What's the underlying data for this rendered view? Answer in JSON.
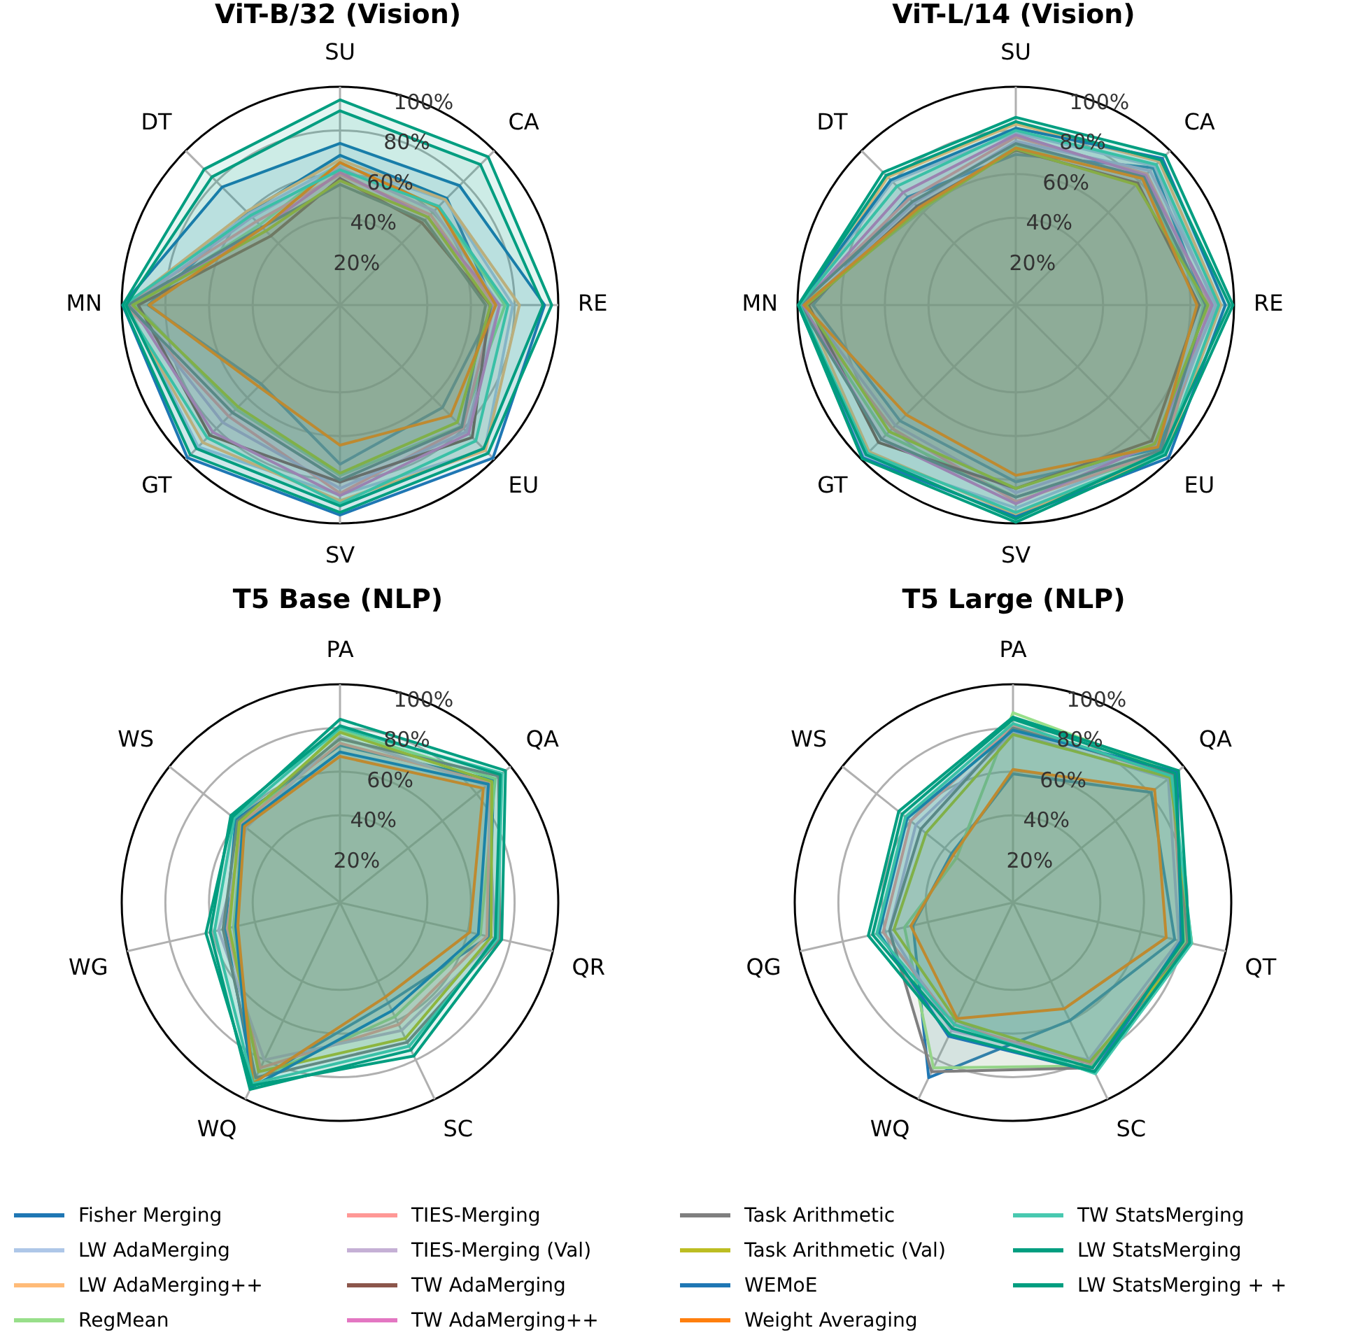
{
  "chart_data": [
    {
      "type": "radar",
      "title": "ViT-B/32 (Vision)",
      "categories": [
        "SU",
        "CA",
        "RE",
        "EU",
        "SV",
        "GT",
        "MN",
        "DT"
      ],
      "ylim": [
        0,
        100
      ],
      "yticks": [
        {
          "value": 20,
          "label": "20%"
        },
        {
          "value": 40,
          "label": "40%"
        },
        {
          "value": 60,
          "label": "60%"
        },
        {
          "value": 80,
          "label": "80%"
        },
        {
          "value": 100,
          "label": "100%"
        }
      ],
      "grid": true,
      "legend": "bottom",
      "series": [
        {
          "name": "Fisher Merging",
          "color": "#1f77b4",
          "values": [
            68.6,
            69.2,
            70.7,
            66.4,
            72.9,
            51.1,
            87.9,
            59.9
          ]
        },
        {
          "name": "LW AdaMerging",
          "color": "#aec7e8",
          "values": [
            64.5,
            68.1,
            79.2,
            93.8,
            87.0,
            91.9,
            97.5,
            59.1
          ]
        },
        {
          "name": "LW AdaMerging++",
          "color": "#ffbb78",
          "values": [
            66.6,
            68.3,
            82.2,
            94.2,
            89.6,
            89.0,
            98.3,
            60.6
          ]
        },
        {
          "name": "RegMean",
          "color": "#98df8a",
          "values": [
            65.3,
            63.5,
            75.6,
            78.6,
            78.1,
            67.4,
            93.7,
            52.0
          ]
        },
        {
          "name": "TIES-Merging",
          "color": "#ff9896",
          "values": [
            59.8,
            58.6,
            70.7,
            79.7,
            86.2,
            72.1,
            98.3,
            54.2
          ]
        },
        {
          "name": "TIES-Merging (Val)",
          "color": "#c5b0d5",
          "values": [
            63,
            61,
            73,
            82,
            84,
            76,
            96,
            57
          ]
        },
        {
          "name": "TW AdaMerging",
          "color": "#8c564b",
          "values": [
            58.0,
            53.2,
            68.8,
            85.7,
            81.1,
            84.4,
            92.4,
            44.8
          ]
        },
        {
          "name": "TW AdaMerging++",
          "color": "#e377c2",
          "values": [
            60.8,
            56.9,
            73.1,
            83.4,
            87.3,
            82.4,
            95.7,
            50.1
          ]
        },
        {
          "name": "Task Arithmetic",
          "color": "#7f7f7f",
          "values": [
            55.2,
            54.9,
            66.7,
            78.9,
            80.2,
            69.7,
            97.3,
            50.4
          ]
        },
        {
          "name": "Task Arithmetic (Val)",
          "color": "#bcbd22",
          "values": [
            57,
            57,
            69,
            76,
            77,
            66,
            95,
            48
          ]
        },
        {
          "name": "WEMoE",
          "color": "#1f77b4",
          "values": [
            74.1,
            77.4,
            93.7,
            99.1,
            96.2,
            98.9,
            99.6,
            76.4
          ]
        },
        {
          "name": "Weight Averaging",
          "color": "#ff7f0e",
          "values": [
            65.3,
            63.4,
            71.4,
            71.7,
            64.2,
            52.8,
            87.5,
            50.1
          ]
        },
        {
          "name": "TW StatsMerging",
          "color": "#48c9b0",
          "values": [
            62,
            64,
            77,
            88,
            91,
            86,
            99,
            58
          ]
        },
        {
          "name": "LW StatsMerging",
          "color": "#009e80",
          "values": [
            89,
            91,
            93,
            93,
            92,
            93,
            98,
            83
          ]
        },
        {
          "name": "LW StatsMerging + +",
          "color": "#009e80",
          "values": [
            94,
            96,
            97,
            96,
            95,
            97,
            99.5,
            88
          ]
        }
      ]
    },
    {
      "type": "radar",
      "title": "ViT-L/14 (Vision)",
      "categories": [
        "SU",
        "CA",
        "RE",
        "EU",
        "SV",
        "GT",
        "MN",
        "DT"
      ],
      "ylim": [
        0,
        100
      ],
      "yticks": [
        {
          "value": 20,
          "label": "20%"
        },
        {
          "value": 40,
          "label": "40%"
        },
        {
          "value": 60,
          "label": "60%"
        },
        {
          "value": 80,
          "label": "80%"
        },
        {
          "value": 100,
          "label": "100%"
        }
      ],
      "grid": true,
      "legend": "bottom",
      "series": [
        {
          "name": "Fisher Merging",
          "color": "#1f77b4",
          "values": [
            69,
            89,
            87,
            93,
            81,
            75,
            93,
            70
          ]
        },
        {
          "name": "LW AdaMerging",
          "color": "#aec7e8",
          "values": [
            79,
            90,
            91,
            94,
            93,
            98,
            99,
            80
          ]
        },
        {
          "name": "LW AdaMerging++",
          "color": "#ffbb78",
          "values": [
            83,
            93,
            94,
            97,
            96,
            95,
            97,
            83
          ]
        },
        {
          "name": "RegMean",
          "color": "#98df8a",
          "values": [
            73,
            82,
            86,
            97,
            88,
            84,
            98,
            61
          ]
        },
        {
          "name": "TIES-Merging",
          "color": "#ff9896",
          "values": [
            77,
            85,
            89,
            95,
            90,
            80,
            99,
            69
          ]
        },
        {
          "name": "TIES-Merging (Val)",
          "color": "#c5b0d5",
          "values": [
            75,
            87,
            92,
            91,
            86,
            78,
            96,
            66
          ]
        },
        {
          "name": "TW AdaMerging",
          "color": "#8c564b",
          "values": [
            71,
            79,
            84,
            88,
            84,
            89,
            95,
            64
          ]
        },
        {
          "name": "TW AdaMerging++",
          "color": "#e377c2",
          "values": [
            78,
            84,
            90,
            90,
            91,
            87,
            98,
            73
          ]
        },
        {
          "name": "Task Arithmetic",
          "color": "#7f7f7f",
          "values": [
            74,
            83,
            87,
            94,
            88,
            87,
            99,
            67
          ]
        },
        {
          "name": "Task Arithmetic (Val)",
          "color": "#bcbd22",
          "values": [
            71.5,
            78,
            88,
            90,
            84,
            82,
            96,
            62
          ]
        },
        {
          "name": "WEMoE",
          "color": "#1f77b4",
          "values": [
            81,
            95,
            96,
            99,
            97,
            99,
            99.6,
            81
          ]
        },
        {
          "name": "Weight Averaging",
          "color": "#ff7f0e",
          "values": [
            72,
            82,
            83,
            92,
            78,
            71,
            97,
            63
          ]
        },
        {
          "name": "TW StatsMerging",
          "color": "#48c9b0",
          "values": [
            80,
            91,
            93,
            96,
            95,
            96,
            99,
            77
          ]
        },
        {
          "name": "LW StatsMerging",
          "color": "#009e80",
          "values": [
            84,
            94,
            98,
            95,
            98,
            97,
            99.5,
            84
          ]
        },
        {
          "name": "LW StatsMerging + +",
          "color": "#009e80",
          "values": [
            86,
            97,
            99.5,
            97,
            99.5,
            99.5,
            99.7,
            86
          ]
        }
      ]
    },
    {
      "type": "radar",
      "title": "T5 Base (NLP)",
      "categories": [
        "PA",
        "QA",
        "QR",
        "SC",
        "WQ",
        "WG",
        "WS"
      ],
      "ylim": [
        0,
        100
      ],
      "yticks": [
        {
          "value": 20,
          "label": "20%"
        },
        {
          "value": 40,
          "label": "40%"
        },
        {
          "value": 60,
          "label": "60%"
        },
        {
          "value": 80,
          "label": "80%"
        },
        {
          "value": 100,
          "label": "100%"
        }
      ],
      "grid": true,
      "legend": "bottom",
      "series": [
        {
          "name": "Fisher Merging",
          "color": "#1f77b4",
          "values": [
            72,
            90,
            70,
            51,
            91,
            54,
            61
          ]
        },
        {
          "name": "RegMean",
          "color": "#98df8a",
          "values": [
            79,
            91,
            66,
            58,
            90,
            50,
            57
          ]
        },
        {
          "name": "TIES-Merging",
          "color": "#ff9896",
          "values": [
            73,
            88,
            69,
            62,
            84,
            53,
            58
          ]
        },
        {
          "name": "TIES-Merging (Val)",
          "color": "#c5b0d5",
          "values": [
            76,
            86,
            73,
            65,
            80,
            57,
            55
          ]
        },
        {
          "name": "Task Arithmetic",
          "color": "#7f7f7f",
          "values": [
            75,
            93,
            75,
            71,
            89,
            55,
            60
          ]
        },
        {
          "name": "Task Arithmetic (Val)",
          "color": "#bcbd22",
          "values": [
            78,
            89,
            71,
            69,
            86,
            52,
            59
          ]
        },
        {
          "name": "WEMoE",
          "color": "#1f77b4",
          "values": [
            69,
            87,
            65,
            55,
            94,
            49,
            57
          ]
        },
        {
          "name": "Weight Averaging",
          "color": "#ff7f0e",
          "values": [
            67,
            84,
            61,
            48,
            92,
            48,
            56
          ]
        },
        {
          "name": "TW StatsMerging",
          "color": "#48c9b0",
          "values": [
            80,
            95,
            74,
            73,
            92,
            59,
            62
          ]
        },
        {
          "name": "LW StatsMerging",
          "color": "#009e80",
          "values": [
            81,
            94,
            73,
            75,
            95,
            61,
            64
          ]
        },
        {
          "name": "LW StatsMerging + +",
          "color": "#009e80",
          "values": [
            84,
            97,
            76,
            78,
            93,
            63,
            63
          ]
        }
      ]
    },
    {
      "type": "radar",
      "title": "T5 Large (NLP)",
      "categories": [
        "PA",
        "QA",
        "QT",
        "SC",
        "WQ",
        "QG",
        "WS"
      ],
      "ylim": [
        0,
        100
      ],
      "yticks": [
        {
          "value": 20,
          "label": "20%"
        },
        {
          "value": 40,
          "label": "40%"
        },
        {
          "value": 60,
          "label": "60%"
        },
        {
          "value": 80,
          "label": "80%"
        },
        {
          "value": 100,
          "label": "100%"
        }
      ],
      "grid": true,
      "legend": "bottom",
      "series": [
        {
          "name": "Fisher Merging",
          "color": "#1f77b4",
          "values": [
            59,
            81,
            76,
            60,
            89,
            47,
            36
          ]
        },
        {
          "name": "RegMean",
          "color": "#98df8a",
          "values": [
            87,
            95,
            81,
            83,
            84,
            51,
            33
          ]
        },
        {
          "name": "TIES-Merging",
          "color": "#ff9896",
          "values": [
            81,
            93,
            80,
            82,
            62,
            61,
            60
          ]
        },
        {
          "name": "TIES-Merging (Val)",
          "color": "#c5b0d5",
          "values": [
            78,
            91,
            78,
            80,
            65,
            58,
            57
          ]
        },
        {
          "name": "Task Arithmetic",
          "color": "#7f7f7f",
          "values": [
            80,
            94,
            82,
            84,
            86,
            58,
            54
          ]
        },
        {
          "name": "Task Arithmetic (Val)",
          "color": "#bcbd22",
          "values": [
            77,
            92,
            84,
            81,
            60,
            56,
            51
          ]
        },
        {
          "name": "WEMoE",
          "color": "#1f77b4",
          "values": [
            79,
            96,
            79,
            86,
            68,
            63,
            62
          ]
        },
        {
          "name": "Weight Averaging",
          "color": "#ff7f0e",
          "values": [
            61,
            83,
            72,
            54,
            59,
            48,
            35
          ]
        },
        {
          "name": "TW StatsMerging",
          "color": "#48c9b0",
          "values": [
            82,
            93,
            84,
            87,
            62,
            64,
            63
          ]
        },
        {
          "name": "LW StatsMerging",
          "color": "#009e80",
          "values": [
            84,
            95,
            80,
            84,
            64,
            66,
            65
          ]
        },
        {
          "name": "LW StatsMerging + +",
          "color": "#009e80",
          "values": [
            85,
            97,
            83,
            86,
            67,
            68,
            67
          ]
        }
      ]
    }
  ]
}
